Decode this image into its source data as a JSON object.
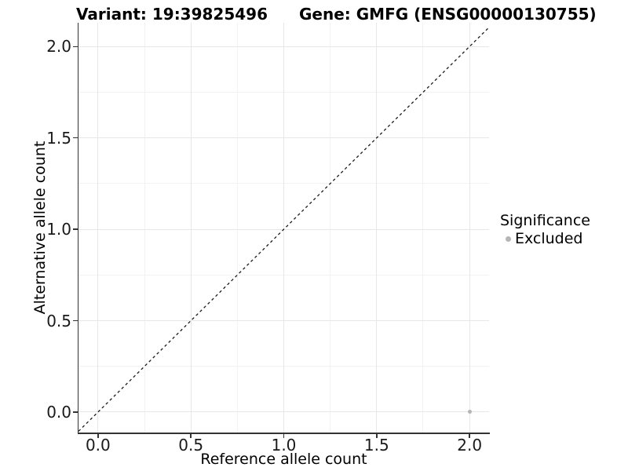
{
  "title": {
    "variant": "Variant: 19:39825496",
    "gene": "Gene: GMFG (ENSG00000130755)"
  },
  "chart_data": {
    "type": "scatter",
    "title": "Variant: 19:39825496    Gene: GMFG (ENSG00000130755)",
    "xlabel": "Reference allele count",
    "ylabel": "Alternative allele count",
    "xlim": [
      -0.105,
      2.105
    ],
    "ylim": [
      -0.112,
      2.13
    ],
    "xticks": [
      0.0,
      0.5,
      1.0,
      1.5,
      2.0
    ],
    "yticks": [
      0.0,
      0.5,
      1.0,
      1.5,
      2.0
    ],
    "xtick_labels": [
      "0.0",
      "0.5",
      "1.0",
      "1.5",
      "2.0"
    ],
    "ytick_labels": [
      "0.0",
      "0.5",
      "1.0",
      "1.5",
      "2.0"
    ],
    "minor_xticks": [
      0.25,
      0.75,
      1.25,
      1.75
    ],
    "minor_yticks": [
      0.25,
      0.75,
      1.25,
      1.75
    ],
    "grid": true,
    "reference_line": {
      "kind": "identity",
      "style": "dashed",
      "color": "#1a1a1a",
      "from": [
        -0.105,
        -0.105
      ],
      "to": [
        2.105,
        2.105
      ]
    },
    "series": [
      {
        "name": "Excluded",
        "color": "#b5b5b5",
        "points": [
          {
            "x": 2.0,
            "y": 0.0
          }
        ]
      }
    ],
    "legend": {
      "title": "Significance",
      "position": "right",
      "entries": [
        {
          "label": "Excluded",
          "color": "#b5b5b5"
        }
      ]
    },
    "colors": {
      "axis_line": "#333333",
      "tick_text": "#1a1a1a",
      "grid_major": "#e7e7e7",
      "grid_minor": "#f2f2f2",
      "panel_bg": "#ffffff"
    }
  }
}
